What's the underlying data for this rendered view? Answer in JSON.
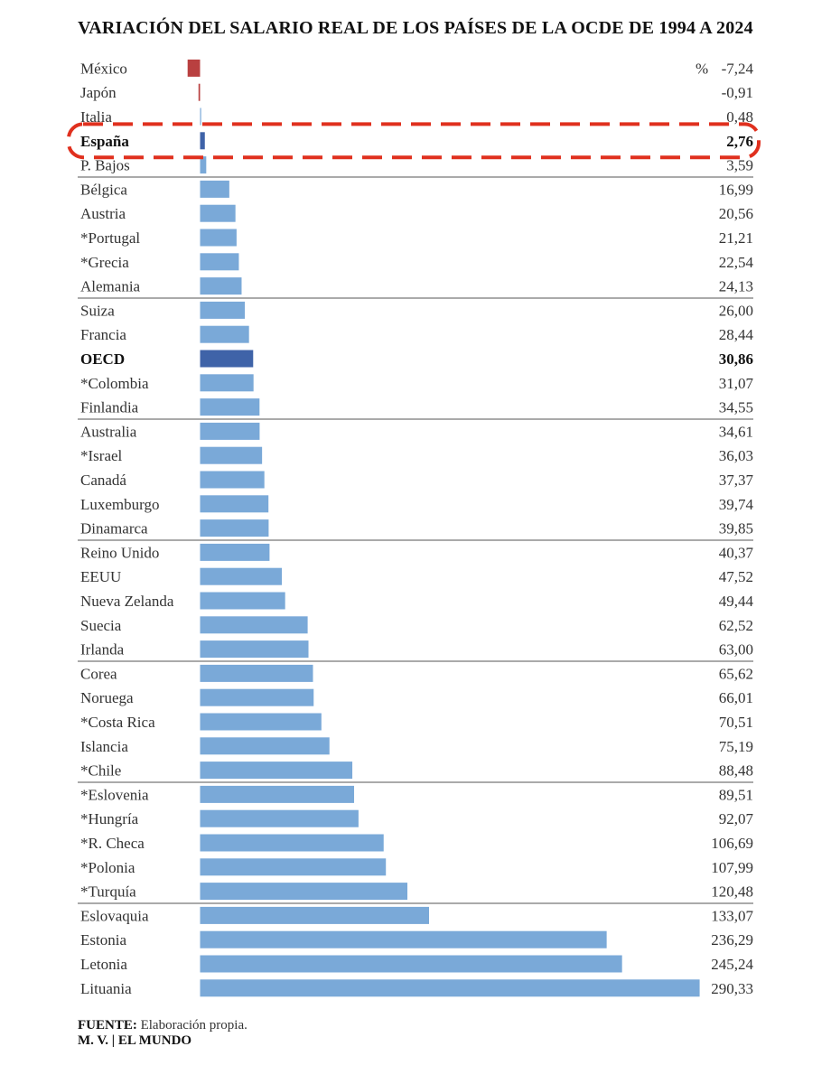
{
  "chart_data": {
    "type": "bar",
    "orientation": "horizontal",
    "title": "VARIACIÓN DEL SALARIO REAL DE LOS PAÍSES DE LA OCDE DE 1994 A 2024",
    "unit": "%",
    "categories": [
      "México",
      "Japón",
      "Italia",
      "España",
      "P. Bajos",
      "Bélgica",
      "Austria",
      "*Portugal",
      "*Grecia",
      "Alemania",
      "Suiza",
      "Francia",
      "OECD",
      "*Colombia",
      "Finlandia",
      "Australia",
      "*Israel",
      "Canadá",
      "Luxemburgo",
      "Dinamarca",
      "Reino Unido",
      "EEUU",
      "Nueva Zelanda",
      "Suecia",
      "Irlanda",
      "Corea",
      "Noruega",
      "*Costa Rica",
      "Islancia",
      "*Chile",
      "*Eslovenia",
      "*Hungría",
      "*R. Checa",
      "*Polonia",
      "*Turquía",
      "Eslovaquia",
      "Estonia",
      "Letonia",
      "Lituania"
    ],
    "values": [
      -7.24,
      -0.91,
      0.48,
      2.76,
      3.59,
      16.99,
      20.56,
      21.21,
      22.54,
      24.13,
      26.0,
      28.44,
      30.86,
      31.07,
      34.55,
      34.61,
      36.03,
      37.37,
      39.74,
      39.85,
      40.37,
      47.52,
      49.44,
      62.52,
      63.0,
      65.62,
      66.01,
      70.51,
      75.19,
      88.48,
      89.51,
      92.07,
      106.69,
      107.99,
      120.48,
      133.07,
      236.29,
      245.24,
      290.33
    ],
    "value_labels": [
      "-7,24",
      "-0,91",
      "0,48",
      "2,76",
      "3,59",
      "16,99",
      "20,56",
      "21,21",
      "22,54",
      "24,13",
      "26,00",
      "28,44",
      "30,86",
      "31,07",
      "34,55",
      "34,61",
      "36,03",
      "37,37",
      "39,74",
      "39,85",
      "40,37",
      "47,52",
      "49,44",
      "62,52",
      "63,00",
      "65,62",
      "66,01",
      "70,51",
      "75,19",
      "88,48",
      "89,51",
      "92,07",
      "106,69",
      "107,99",
      "120,48",
      "133,07",
      "236,29",
      "245,24",
      "290,33"
    ],
    "highlighted": [
      "España",
      "OECD"
    ],
    "highlight_box": "España",
    "colors": {
      "positive": "#7aa9d8",
      "negative": "#b94040",
      "highlight": "#3f63a8",
      "highlight_box": "#e0301e",
      "separator": "#555555"
    },
    "grid": false,
    "legend": "none"
  },
  "source": {
    "label": "FUENTE:",
    "text": "Elaboración propia."
  },
  "credit": "M. V. | EL MUNDO"
}
